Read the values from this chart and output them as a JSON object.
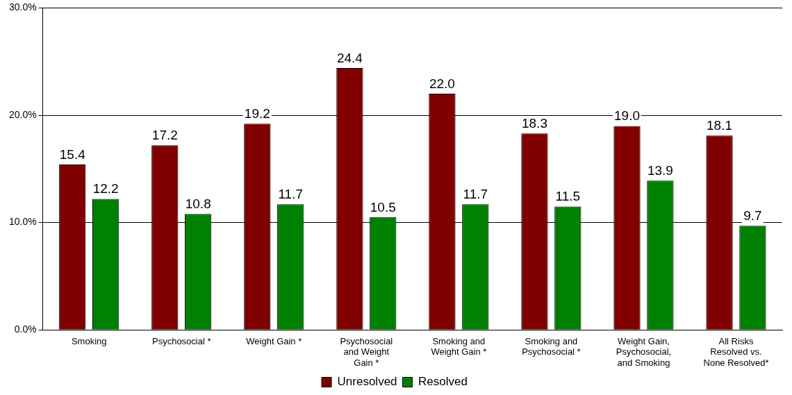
{
  "chart_data": {
    "type": "bar",
    "categories": [
      "Smoking",
      "Psychosocial *",
      "Weight Gain *",
      "Psychosocial and Weight Gain *",
      "Smoking and Weight Gain *",
      "Smoking and Psychosocial *",
      "Weight Gain, Psychosocial, and Smoking",
      "All Risks Resolved vs. None Resolved*"
    ],
    "series": [
      {
        "name": "Unresolved",
        "color": "#800000",
        "values": [
          15.4,
          17.2,
          19.2,
          24.4,
          22.0,
          18.3,
          19.0,
          18.1
        ],
        "value_labels": [
          "15.4",
          "17.2",
          "19.2",
          "24.4",
          "22.0",
          "18.3",
          "19.0",
          "18.1"
        ]
      },
      {
        "name": "Resolved",
        "color": "#008000",
        "values": [
          12.2,
          10.8,
          11.7,
          10.5,
          11.7,
          11.5,
          13.9,
          9.7
        ],
        "value_labels": [
          "12.2",
          "10.8",
          "11.7",
          "10.5",
          "11.7",
          "11.5",
          "13.9",
          "9.7"
        ]
      }
    ],
    "ylim": [
      0,
      30
    ],
    "yticks": [
      {
        "value": 0,
        "label": "0.0%"
      },
      {
        "value": 10,
        "label": "10.0%"
      },
      {
        "value": 20,
        "label": "20.0%"
      },
      {
        "value": 30,
        "label": "30.0%"
      }
    ],
    "grid": "y",
    "legend": "bottom"
  }
}
